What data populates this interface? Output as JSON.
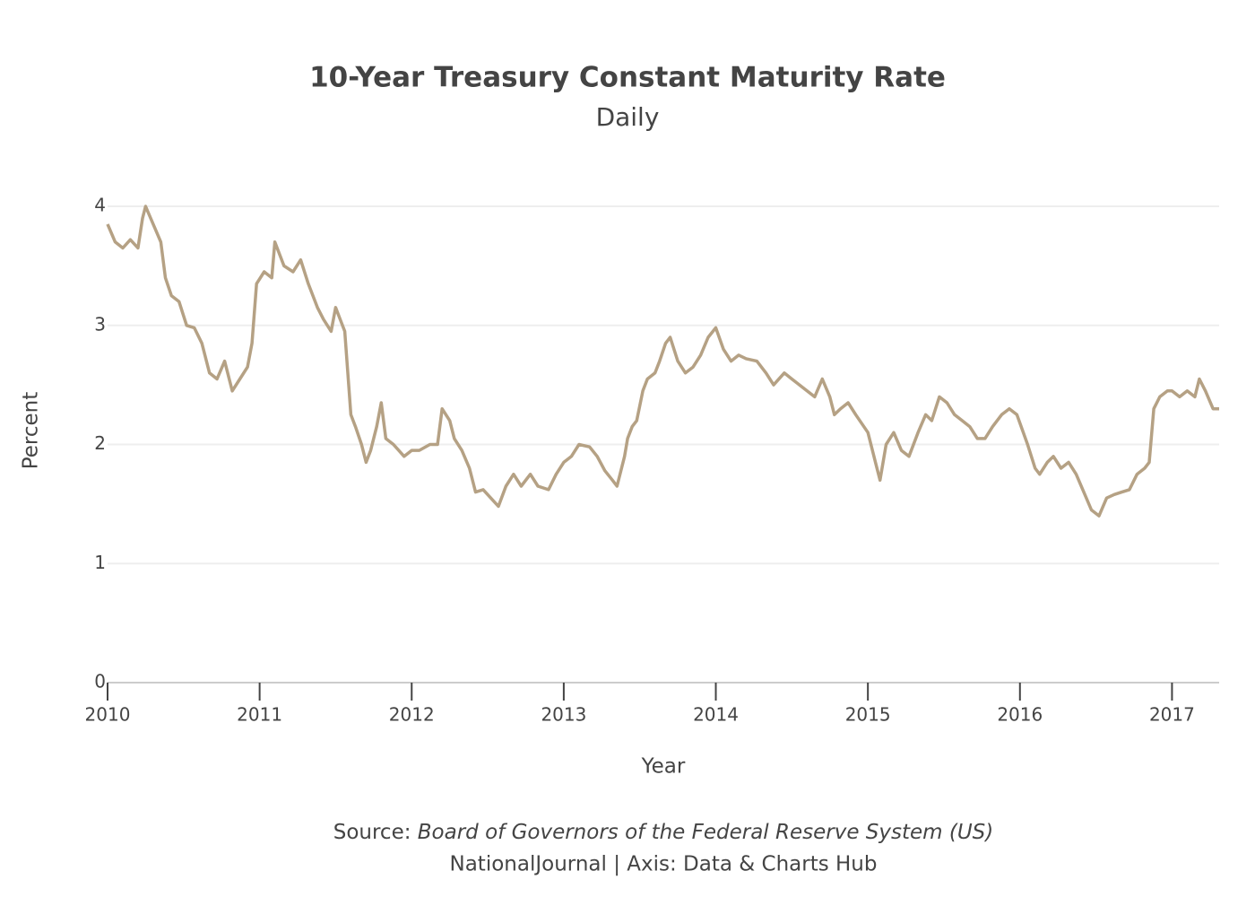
{
  "chart_data": {
    "type": "line",
    "title": "10-Year Treasury Constant Maturity Rate",
    "subtitle": "Daily",
    "x_label": "Year",
    "y_label": "Percent",
    "source_label": "Source:",
    "source": "Board of Governors of the Federal Reserve System (US)",
    "credit": "NationalJournal | Axis: Data & Charts Hub",
    "xlim": [
      2010,
      2017.31
    ],
    "xticks": [
      2010,
      2011,
      2012,
      2013,
      2014,
      2015,
      2016,
      2017
    ],
    "ylim": [
      0,
      4
    ],
    "yticks": [
      0,
      1,
      2,
      3,
      4
    ],
    "grid": true,
    "x": [
      2010.0,
      2010.05,
      2010.1,
      2010.15,
      2010.2,
      2010.23,
      2010.25,
      2010.3,
      2010.35,
      2010.38,
      2010.42,
      2010.47,
      2010.52,
      2010.57,
      2010.62,
      2010.67,
      2010.72,
      2010.77,
      2010.82,
      2010.87,
      2010.92,
      2010.95,
      2010.98,
      2011.03,
      2011.08,
      2011.1,
      2011.16,
      2011.22,
      2011.27,
      2011.32,
      2011.38,
      2011.42,
      2011.47,
      2011.5,
      2011.56,
      2011.58,
      2011.6,
      2011.63,
      2011.67,
      2011.7,
      2011.73,
      2011.77,
      2011.8,
      2011.83,
      2011.88,
      2011.95,
      2012.0,
      2012.05,
      2012.12,
      2012.17,
      2012.2,
      2012.25,
      2012.28,
      2012.33,
      2012.38,
      2012.42,
      2012.47,
      2012.52,
      2012.57,
      2012.62,
      2012.67,
      2012.72,
      2012.78,
      2012.83,
      2012.9,
      2012.95,
      2013.0,
      2013.05,
      2013.1,
      2013.17,
      2013.22,
      2013.27,
      2013.32,
      2013.35,
      2013.4,
      2013.42,
      2013.45,
      2013.48,
      2013.52,
      2013.55,
      2013.6,
      2013.63,
      2013.67,
      2013.7,
      2013.75,
      2013.8,
      2013.85,
      2013.9,
      2013.95,
      2014.0,
      2014.05,
      2014.1,
      2014.15,
      2014.2,
      2014.27,
      2014.33,
      2014.38,
      2014.45,
      2014.5,
      2014.55,
      2014.6,
      2014.65,
      2014.7,
      2014.75,
      2014.78,
      2014.82,
      2014.87,
      2014.92,
      2015.0,
      2015.05,
      2015.08,
      2015.12,
      2015.17,
      2015.22,
      2015.27,
      2015.33,
      2015.38,
      2015.42,
      2015.47,
      2015.52,
      2015.57,
      2015.62,
      2015.67,
      2015.72,
      2015.77,
      2015.82,
      2015.88,
      2015.93,
      2015.98,
      2016.05,
      2016.1,
      2016.13,
      2016.18,
      2016.22,
      2016.27,
      2016.32,
      2016.37,
      2016.42,
      2016.47,
      2016.52,
      2016.57,
      2016.62,
      2016.67,
      2016.72,
      2016.77,
      2016.82,
      2016.85,
      2016.88,
      2016.92,
      2016.97,
      2017.0,
      2017.05,
      2017.1,
      2017.15,
      2017.18,
      2017.22,
      2017.27,
      2017.31
    ],
    "series": [
      {
        "name": "10-Year Treasury Constant Maturity Rate",
        "color": "#b5a184",
        "values": [
          3.85,
          3.7,
          3.65,
          3.72,
          3.65,
          3.9,
          4.0,
          3.85,
          3.7,
          3.4,
          3.25,
          3.2,
          3.0,
          2.98,
          2.85,
          2.6,
          2.55,
          2.7,
          2.45,
          2.55,
          2.65,
          2.85,
          3.35,
          3.45,
          3.4,
          3.7,
          3.5,
          3.45,
          3.55,
          3.35,
          3.15,
          3.05,
          2.95,
          3.15,
          2.95,
          2.6,
          2.25,
          2.15,
          2.0,
          1.85,
          1.95,
          2.15,
          2.35,
          2.05,
          2.0,
          1.9,
          1.95,
          1.95,
          2.0,
          2.0,
          2.3,
          2.2,
          2.05,
          1.95,
          1.8,
          1.6,
          1.62,
          1.55,
          1.48,
          1.65,
          1.75,
          1.65,
          1.75,
          1.65,
          1.62,
          1.75,
          1.85,
          1.9,
          2.0,
          1.98,
          1.9,
          1.78,
          1.7,
          1.65,
          1.9,
          2.05,
          2.15,
          2.2,
          2.45,
          2.55,
          2.6,
          2.7,
          2.85,
          2.9,
          2.7,
          2.6,
          2.65,
          2.75,
          2.9,
          2.98,
          2.8,
          2.7,
          2.75,
          2.72,
          2.7,
          2.6,
          2.5,
          2.6,
          2.55,
          2.5,
          2.45,
          2.4,
          2.55,
          2.4,
          2.25,
          2.3,
          2.35,
          2.25,
          2.1,
          1.85,
          1.7,
          2.0,
          2.1,
          1.95,
          1.9,
          2.1,
          2.25,
          2.2,
          2.4,
          2.35,
          2.25,
          2.2,
          2.15,
          2.05,
          2.05,
          2.15,
          2.25,
          2.3,
          2.25,
          2.0,
          1.8,
          1.75,
          1.85,
          1.9,
          1.8,
          1.85,
          1.75,
          1.6,
          1.45,
          1.4,
          1.55,
          1.58,
          1.6,
          1.62,
          1.75,
          1.8,
          1.85,
          2.3,
          2.4,
          2.45,
          2.45,
          2.4,
          2.45,
          2.4,
          2.55,
          2.45,
          2.3,
          2.3
        ]
      }
    ]
  }
}
